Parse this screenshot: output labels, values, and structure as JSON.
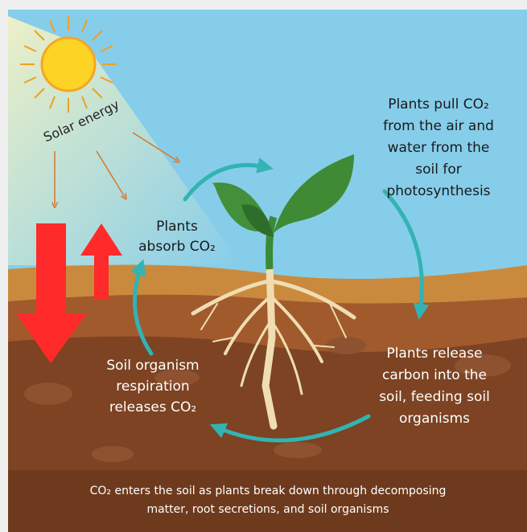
{
  "solar_label": "Solar energy",
  "labels": [
    {
      "lines": [
        "Plants pull CO₂",
        "from the air and",
        "water from the",
        "soil for",
        "photosynthesis"
      ]
    },
    {
      "lines": [
        "Plants",
        "absorb CO₂"
      ]
    },
    {
      "lines": [
        "Plants release",
        "carbon into the",
        "soil, feeding soil",
        "organisms"
      ]
    },
    {
      "lines": [
        "Soil organism",
        "respiration",
        "releases CO₂"
      ]
    }
  ],
  "caption": {
    "lines": [
      "CO₂ enters the soil as plants break down through decomposing",
      "matter, root secretions, and soil organisms"
    ]
  }
}
